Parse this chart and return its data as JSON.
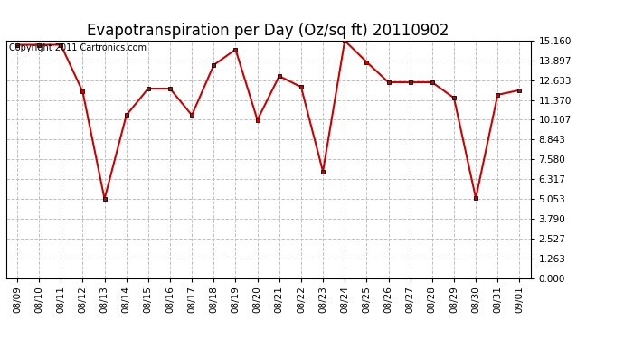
{
  "title": "Evapotranspiration per Day (Oz/sq ft) 20110902",
  "copyright": "Copyright 2011 Cartronics.com",
  "x_labels": [
    "08/09",
    "08/10",
    "08/11",
    "08/12",
    "08/13",
    "08/14",
    "08/15",
    "08/16",
    "08/17",
    "08/18",
    "08/19",
    "08/20",
    "08/21",
    "08/22",
    "08/23",
    "08/24",
    "08/25",
    "08/26",
    "08/27",
    "08/28",
    "08/29",
    "08/30",
    "08/31",
    "09/01"
  ],
  "y_values": [
    14.9,
    14.9,
    14.9,
    11.9,
    5.05,
    10.4,
    12.1,
    12.1,
    10.4,
    13.6,
    14.6,
    10.1,
    12.9,
    12.2,
    6.8,
    15.16,
    13.8,
    12.5,
    12.5,
    12.5,
    11.5,
    5.1,
    11.7,
    12.0
  ],
  "y_ticks": [
    0.0,
    1.263,
    2.527,
    3.79,
    5.053,
    6.317,
    7.58,
    8.843,
    10.107,
    11.37,
    12.633,
    13.897,
    15.16
  ],
  "ymin": 0.0,
  "ymax": 15.16,
  "line_color": "#cc0000",
  "marker": "s",
  "marker_size": 3,
  "background_color": "#ffffff",
  "grid_color": "#c0c0c0",
  "title_fontsize": 12,
  "copyright_fontsize": 7,
  "tick_fontsize": 7.5
}
